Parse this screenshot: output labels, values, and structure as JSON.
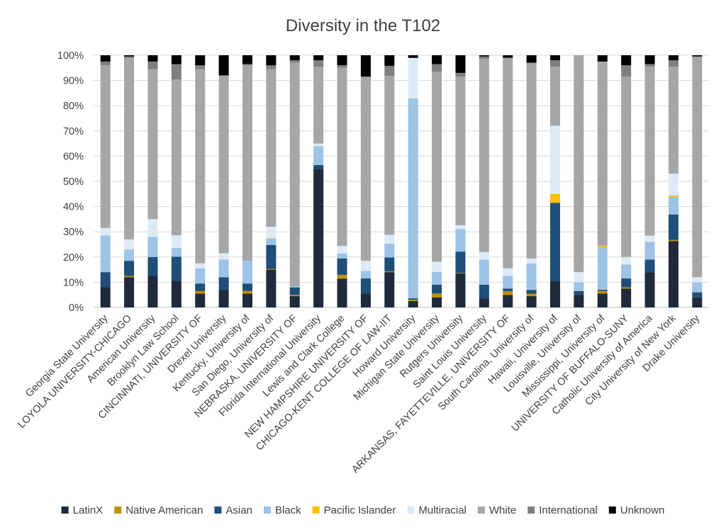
{
  "chart_data": {
    "type": "bar",
    "stacked": true,
    "percent": true,
    "title": "Diversity in the T102",
    "xlabel": "",
    "ylabel": "",
    "ylim": [
      0,
      100
    ],
    "yticks": [
      "0%",
      "10%",
      "20%",
      "30%",
      "40%",
      "50%",
      "60%",
      "70%",
      "80%",
      "90%",
      "100%"
    ],
    "legend_position": "bottom",
    "grid": true,
    "categories": [
      "Georgia State University",
      "LOYOLA UNIVERSITY-CHICAGO",
      "American University",
      "Brooklyn Law School",
      "CINCINNATI, UNIVERSITY OF",
      "Drexel University",
      "Kentucky, University of",
      "San Diego, University of",
      "NEBRASKA, UNIVERSITY OF",
      "Florida International University",
      "Lewis and Clark College",
      "NEW HAMPSHIRE UNIVERSITY OF",
      "CHICAGO-KENT COLLEGE OF LAW-IIT",
      "Howard University",
      "Michigan State University",
      "Rutgers University",
      "Saint Louis University",
      "ARKANSAS, FAYETTEVILLE, UNIVERSITY OF",
      "South Carolina, University of",
      "Hawaii, University of",
      "Louisville, University of",
      "Mississippi, University of",
      "UNIVERSITY OF BUFFALO-SUNY",
      "Catholic University of America",
      "City University of New York",
      "Drake University"
    ],
    "series": [
      {
        "name": "LatinX",
        "color": "#1f2a3a",
        "values": [
          8,
          12,
          12.5,
          10.5,
          5.5,
          7,
          5.5,
          15,
          4.5,
          55,
          11.5,
          5.5,
          14,
          2.5,
          4,
          13.5,
          3.5,
          5,
          4.5,
          10.5,
          5,
          5.5,
          7.5,
          14,
          26,
          4
        ]
      },
      {
        "name": "Native American",
        "color": "#bf9000",
        "values": [
          0,
          0.5,
          0,
          0,
          1,
          0,
          1,
          0.3,
          0.5,
          0,
          1.5,
          0,
          0.3,
          0.5,
          1.5,
          0.2,
          0,
          1.5,
          1,
          0,
          0,
          1,
          0.5,
          0,
          0.5,
          0
        ]
      },
      {
        "name": "Asian",
        "color": "#1f4e79",
        "values": [
          6,
          6,
          7.5,
          9.5,
          3,
          5,
          3,
          9.5,
          3,
          1.5,
          6.5,
          6,
          5.5,
          0.5,
          3.5,
          8.5,
          5.5,
          1,
          1.5,
          31,
          1.5,
          0.5,
          3.5,
          5,
          10,
          2
        ]
      },
      {
        "name": "Black",
        "color": "#9dc3e6",
        "values": [
          14.5,
          4.5,
          8,
          3.5,
          6,
          7,
          9,
          2.5,
          0.5,
          7.5,
          2,
          3,
          5.5,
          76.5,
          5,
          9,
          10,
          5,
          10.5,
          0,
          3.5,
          17,
          5.5,
          7,
          7,
          4
        ]
      },
      {
        "name": "Pacific Islander",
        "color": "#ffc000",
        "values": [
          0,
          0,
          0,
          0,
          0,
          0,
          0,
          0.2,
          0,
          0,
          0,
          0,
          0,
          0,
          0,
          0,
          0,
          0,
          0,
          3.5,
          0,
          0.5,
          0,
          0,
          0.5,
          0
        ]
      },
      {
        "name": "Multiracial",
        "color": "#deebf7",
        "values": [
          3,
          4,
          7,
          5,
          2,
          2.5,
          0,
          4.5,
          0,
          1,
          3,
          4,
          3.5,
          15.5,
          4,
          1.5,
          3,
          3,
          2,
          27,
          4,
          0,
          3,
          2.5,
          8.5,
          2
        ]
      },
      {
        "name": "White",
        "color": "#a6a6a6",
        "values": [
          64.5,
          72,
          59.5,
          61.5,
          77,
          70.5,
          77.5,
          62.5,
          89,
          30.5,
          71,
          73,
          63,
          0,
          75,
          59,
          76.5,
          83.5,
          78,
          23.5,
          86,
          73,
          71.5,
          67,
          42,
          87.5
        ]
      },
      {
        "name": "International",
        "color": "#7f7f7f",
        "values": [
          1.5,
          0.5,
          3,
          6,
          1.5,
          0,
          0.5,
          1.5,
          1,
          2.5,
          1,
          0,
          4,
          0,
          3,
          1.5,
          1,
          0,
          0,
          2.5,
          0,
          0,
          4.5,
          1,
          2.5,
          0
        ]
      },
      {
        "name": "Unknown",
        "color": "#000000",
        "values": [
          2.5,
          0.5,
          2.5,
          3.5,
          4,
          8,
          3.5,
          4,
          2,
          2,
          4,
          8.5,
          4.2,
          1,
          3.5,
          7,
          0.5,
          1,
          3,
          2,
          0,
          2.5,
          4,
          3.5,
          2,
          0.5
        ]
      }
    ]
  }
}
